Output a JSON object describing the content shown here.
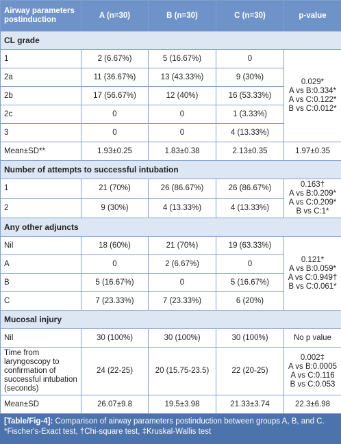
{
  "table": {
    "header": [
      "Airway parameters postinduction",
      "A (n=30)",
      "B (n=30)",
      "C (n=30)",
      "p-value"
    ],
    "sections": [
      {
        "title": "CL grade",
        "groups": [
          {
            "rows": [
              [
                "1",
                "2 (6.67%)",
                "5 (16.67%)",
                "0"
              ],
              [
                "2a",
                "11 (36.67%)",
                "13 (43.33%)",
                "9 (30%)"
              ],
              [
                "2b",
                "17 (56.67%)",
                "12 (40%)",
                "16 (53.33%)"
              ],
              [
                "2c",
                "0",
                "0",
                "1 (3.33%)"
              ],
              [
                "3",
                "0",
                "0",
                "4 (13.33%)"
              ]
            ],
            "p_value": [
              "0.029*",
              "A vs B:0.334*",
              "A vs C:0.122*",
              "B vs C:0.012*"
            ]
          },
          {
            "rows": [
              [
                "Mean±SD**",
                "1.93±0.25",
                "1.83±0.38",
                "2.13±0.35"
              ]
            ],
            "p_value": [
              "1.97±0.35"
            ]
          }
        ]
      },
      {
        "title": "Number of attempts to successful intubation",
        "groups": [
          {
            "rows": [
              [
                "1",
                "21 (70%)",
                "26 (86.67%)",
                "26 (86.67%)"
              ],
              [
                "2",
                "9 (30%)",
                "4 (13.33%)",
                "4 (13.33%)"
              ]
            ],
            "p_value": [
              "0.163†",
              "A vs B:0.209*",
              "A vs C:0.209*",
              "B vs C:1*"
            ]
          }
        ]
      },
      {
        "title": "Any other adjuncts",
        "groups": [
          {
            "rows": [
              [
                "Nil",
                "18 (60%)",
                "21 (70%)",
                "19 (63.33%)"
              ],
              [
                "A",
                "0",
                "2 (6.67%)",
                "0"
              ],
              [
                "B",
                "5 (16.67%)",
                "0",
                "5 (16.67%)"
              ],
              [
                "C",
                "7 (23.33%)",
                "7 (23.33%)",
                "6 (20%)"
              ]
            ],
            "p_value": [
              "0.121*",
              "A vs B:0.059*",
              "A vs C:0.949†",
              "B vs C:0.061*"
            ]
          }
        ]
      },
      {
        "title": "Mucosal injury",
        "groups": [
          {
            "rows": [
              [
                "Nil",
                "30 (100%)",
                "30 (100%)",
                "30 (100%)"
              ]
            ],
            "p_value": [
              "No p value"
            ]
          },
          {
            "rows": [
              [
                "Time from laryngoscopy to confirmation of successful intubation (seconds)",
                "24 (22-25)",
                "20 (15.75-23.5)",
                "22 (20-25)"
              ]
            ],
            "p_value": [
              "0.002‡",
              "A vs B:0.0005",
              "A vs C:0.116",
              "B vs C:0.053"
            ]
          },
          {
            "rows": [
              [
                "Mean±SD",
                "26.07±9.8",
                "19.5±3.98",
                "21.33±3.74"
              ]
            ],
            "p_value": [
              "22.3±6.98"
            ]
          }
        ]
      }
    ]
  },
  "caption": {
    "label": "[Table/Fig-4]:",
    "text": " Comparison of airway parameters postinduction between groups A, B, and C. *Fischer's-Exact test, †Chi-square test, ‡Kruskal-Wallis test"
  }
}
